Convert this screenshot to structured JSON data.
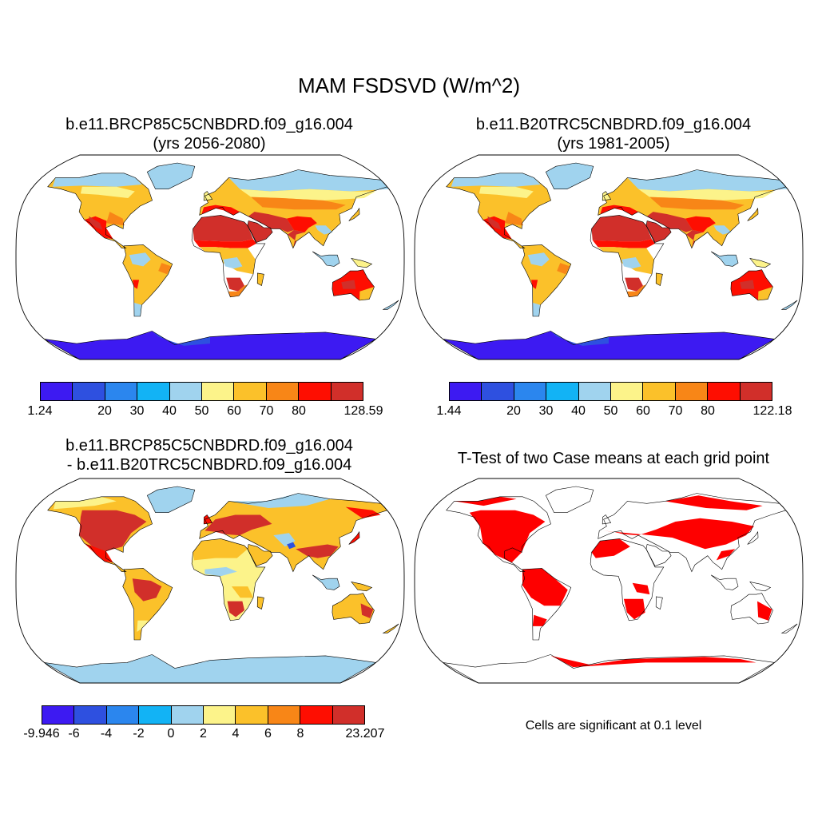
{
  "figure": {
    "title": "MAM FSDSVD (W/m^2)"
  },
  "panels": [
    {
      "id": "future",
      "title_line1": "b.e11.BRCP85C5CNBDRD.f09_g16.004",
      "title_line2": "(yrs 2056-2080)",
      "map_type": "field",
      "colorbar": {
        "colors": [
          "#3d1af2",
          "#2e50e0",
          "#2b86ee",
          "#12b3f5",
          "#a0d3ee",
          "#fcf38a",
          "#fbc12a",
          "#f88617",
          "#fe0e01",
          "#d12f2a"
        ],
        "labels": [
          "1.24",
          "20",
          "30",
          "40",
          "50",
          "60",
          "70",
          "80",
          "128.59"
        ]
      }
    },
    {
      "id": "historical",
      "title_line1": "b.e11.B20TRC5CNBDRD.f09_g16.004",
      "title_line2": "(yrs 1981-2005)",
      "map_type": "field",
      "colorbar": {
        "colors": [
          "#3d1af2",
          "#2e50e0",
          "#2b86ee",
          "#12b3f5",
          "#a0d3ee",
          "#fcf38a",
          "#fbc12a",
          "#f88617",
          "#fe0e01",
          "#d12f2a"
        ],
        "labels": [
          "1.44",
          "20",
          "30",
          "40",
          "50",
          "60",
          "70",
          "80",
          "122.18"
        ]
      }
    },
    {
      "id": "difference",
      "title_line1": "b.e11.BRCP85C5CNBDRD.f09_g16.004",
      "title_line2": "- b.e11.B20TRC5CNBDRD.f09_g16.004",
      "map_type": "difference",
      "colorbar": {
        "colors": [
          "#3d1af2",
          "#2e50e0",
          "#2b86ee",
          "#12b3f5",
          "#a0d3ee",
          "#fcf38a",
          "#fbc12a",
          "#f88617",
          "#fe0e01",
          "#d12f2a"
        ],
        "labels": [
          "-9.946",
          "-6",
          "-4",
          "-2",
          "0",
          "2",
          "4",
          "6",
          "8",
          "23.207"
        ]
      }
    },
    {
      "id": "ttest",
      "title_line1": "T-Test of two Case means at each grid point",
      "map_type": "significance",
      "note": "Cells are significant at 0.1 level",
      "sig_color": "#fe0000"
    }
  ]
}
